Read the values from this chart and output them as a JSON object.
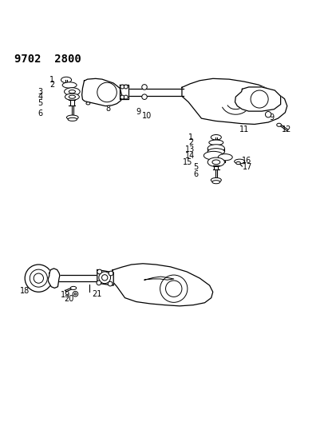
{
  "title": "9702  2800",
  "background_color": "#ffffff",
  "line_color": "#000000",
  "label_color": "#000000",
  "title_fontsize": 10,
  "label_fontsize": 7,
  "figsize": [
    4.11,
    5.33
  ],
  "dpi": 100
}
